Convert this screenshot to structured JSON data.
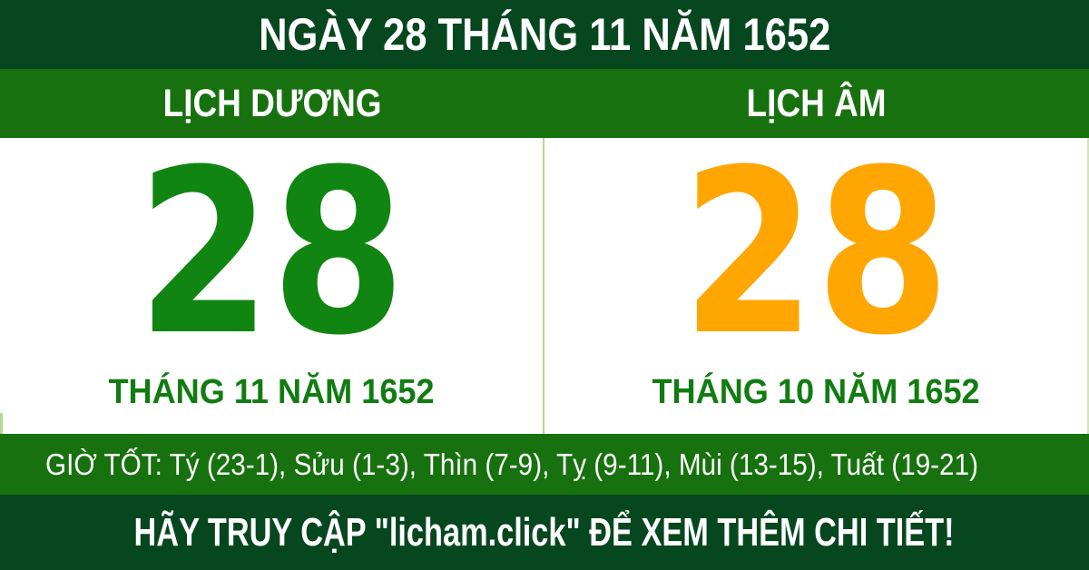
{
  "header": {
    "title": "NGÀY 28 THÁNG 11 NĂM 1652"
  },
  "calendars": {
    "solar": {
      "label": "LỊCH DƯƠNG",
      "day": "28",
      "month_year": "THÁNG 11 NĂM 1652"
    },
    "lunar": {
      "label": "LỊCH ÂM",
      "day": "28",
      "month_year": "THÁNG 10 NĂM 1652"
    }
  },
  "good_hours": {
    "text": "GIỜ TỐT: Tý (23-1), Sửu (1-3), Thìn (7-9), Tỵ (9-11), Mùi (13-15), Tuất (19-21)"
  },
  "footer": {
    "text": "HÃY TRUY CẬP \"licham.click\" ĐỂ XEM THÊM CHI TIẾT!"
  },
  "colors": {
    "dark_green_band": "#074720",
    "medium_green_band": "#17710e",
    "solar_day_green": "#118511",
    "lunar_day_orange": "#ffa602",
    "month_text_green": "#117c11",
    "divider_light_green": "#b2d98c",
    "text_white": "#ffffff"
  }
}
